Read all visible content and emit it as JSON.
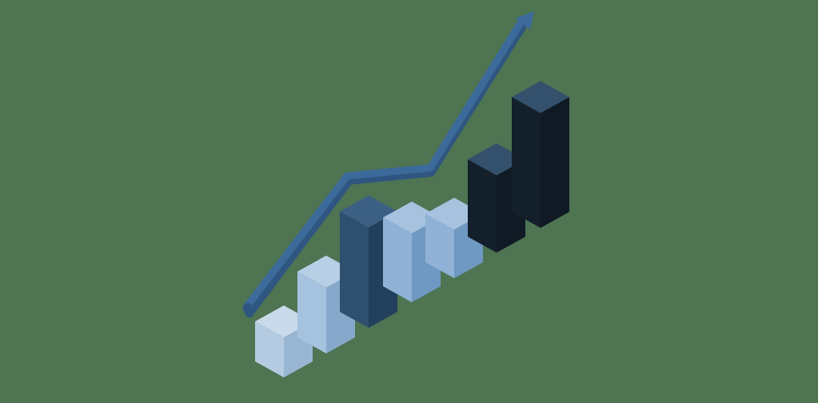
{
  "illustration": {
    "icon": "growth-chart-illustration",
    "background_color": "#4e7452",
    "trend": {
      "icon": "trend-arrow-icon",
      "color": "#3c6a9a",
      "shadow_color": "#2f5680"
    },
    "bars": [
      {
        "name": "bar-1",
        "level": 1.0,
        "top": "#c9daea",
        "left": "#b4cbe2",
        "right": "#98b6d2"
      },
      {
        "name": "bar-2",
        "level": 1.9,
        "top": "#b8d0e6",
        "left": "#a5c3df",
        "right": "#86a9cb"
      },
      {
        "name": "bar-3",
        "level": 3.1,
        "top": "#3c6084",
        "left": "#2f4f70",
        "right": "#22405e"
      },
      {
        "name": "bar-4",
        "level": 2.0,
        "top": "#a6c2de",
        "left": "#8fb2d6",
        "right": "#6f98c2"
      },
      {
        "name": "bar-5",
        "level": 1.3,
        "top": "#a6c2de",
        "left": "#8fb2d6",
        "right": "#6f98c2"
      },
      {
        "name": "bar-6",
        "level": 2.3,
        "top": "#33506c",
        "left": "#131f2b",
        "right": "#0f1a24"
      },
      {
        "name": "bar-7",
        "level": 3.6,
        "top": "#33506c",
        "left": "#131f2b",
        "right": "#0f1a24"
      }
    ]
  }
}
